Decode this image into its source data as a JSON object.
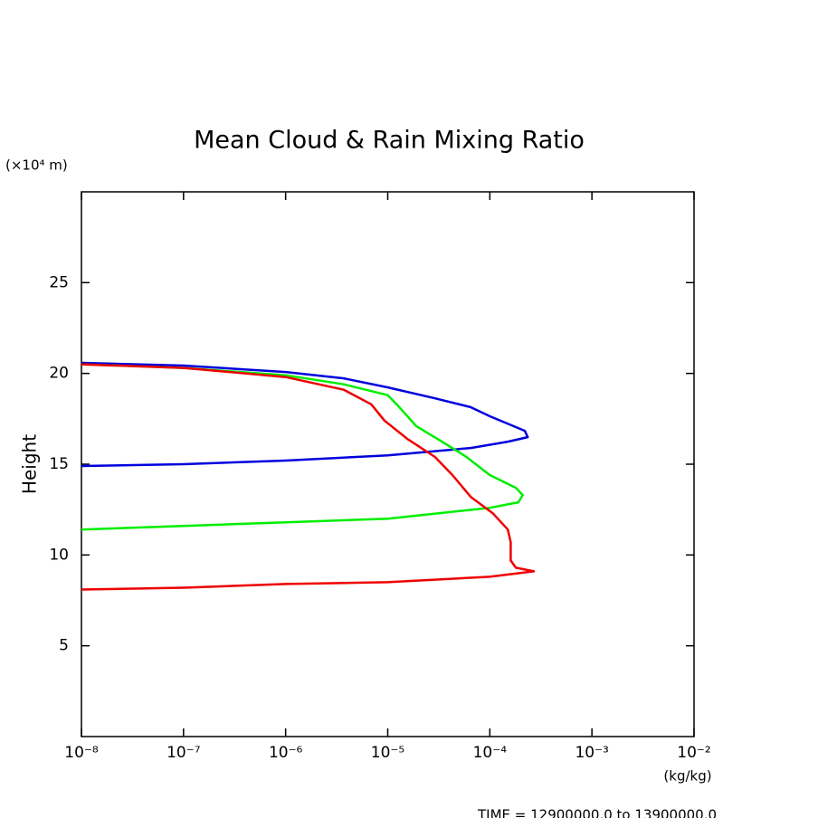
{
  "chart_data": {
    "type": "line",
    "title": "Mean Cloud & Rain Mixing Ratio",
    "y_label": "Height",
    "y_unit": "(×10⁴ m)",
    "x_unit": "(kg/kg)",
    "footer": "TIME = 12900000.0 to 13900000.0",
    "xscale": "log",
    "xlim": [
      1e-08,
      0.01
    ],
    "ylim": [
      0,
      30
    ],
    "xticks": [
      {
        "value": 1e-08,
        "label": "10⁻⁸"
      },
      {
        "value": 1e-07,
        "label": "10⁻⁷"
      },
      {
        "value": 1e-06,
        "label": "10⁻⁶"
      },
      {
        "value": 1e-05,
        "label": "10⁻⁵"
      },
      {
        "value": 0.0001,
        "label": "10⁻⁴"
      },
      {
        "value": 0.001,
        "label": "10⁻³"
      },
      {
        "value": 0.01,
        "label": "10⁻²"
      }
    ],
    "yticks": [
      5,
      10,
      15,
      20,
      25
    ],
    "series": [
      {
        "color": "#0000dd",
        "x": [
          1e-08,
          1e-07,
          1e-06,
          3.7e-06,
          1e-05,
          2.9e-05,
          6.5e-05,
          0.0001,
          0.00022,
          0.000235,
          0.00015,
          6.5e-05,
          1e-05,
          1e-06,
          1e-07,
          1e-08
        ],
        "values": [
          20.58,
          20.43,
          20.08,
          19.73,
          19.23,
          18.63,
          18.14,
          17.64,
          16.84,
          16.49,
          16.24,
          15.89,
          15.49,
          15.2,
          15.0,
          14.9
        ]
      },
      {
        "color": "#00ee00",
        "x": [
          1e-08,
          1e-07,
          1e-06,
          3.7e-06,
          1e-05,
          1.27e-05,
          1.9e-05,
          3.5e-05,
          5.9e-05,
          0.0001,
          0.00018,
          0.00021,
          0.00019,
          0.0001,
          1e-05,
          1e-06,
          1e-07,
          1e-08
        ],
        "values": [
          20.5,
          20.3,
          19.9,
          19.4,
          18.8,
          18.2,
          17.1,
          16.2,
          15.4,
          14.4,
          13.7,
          13.3,
          12.9,
          12.6,
          12.0,
          11.8,
          11.6,
          11.4
        ]
      },
      {
        "color": "#ee0000",
        "x": [
          1e-08,
          1e-07,
          1e-06,
          3.7e-06,
          6.9e-06,
          9.3e-06,
          1.55e-05,
          2.9e-05,
          4.3e-05,
          6.5e-05,
          0.000107,
          0.00015,
          0.00016,
          0.00016,
          0.00018,
          0.00027,
          0.0001,
          1e-05,
          1e-06,
          1e-07,
          1e-08
        ],
        "values": [
          20.5,
          20.3,
          19.8,
          19.1,
          18.3,
          17.4,
          16.4,
          15.4,
          14.4,
          13.2,
          12.3,
          11.4,
          10.7,
          9.7,
          9.3,
          9.1,
          8.8,
          8.5,
          8.4,
          8.2,
          8.1
        ]
      }
    ]
  }
}
